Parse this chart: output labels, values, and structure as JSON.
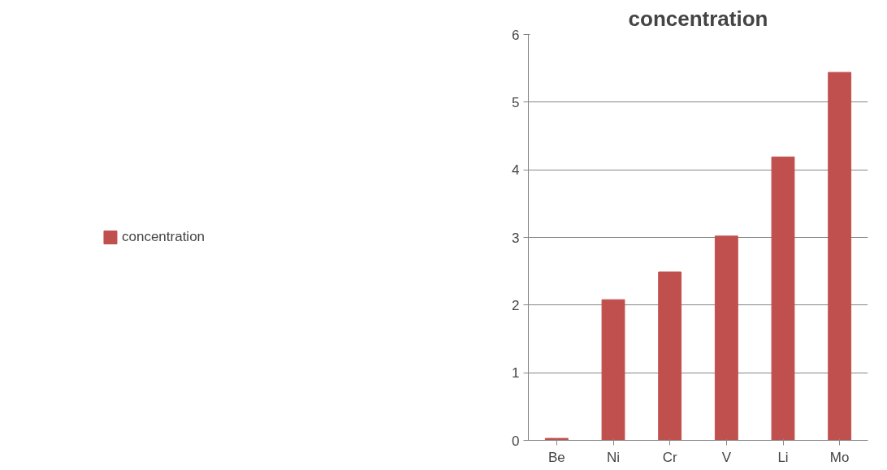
{
  "chart_data": {
    "type": "bar",
    "title": "concentration",
    "categories": [
      "Be",
      "Ni",
      "Cr",
      "V",
      "Li",
      "Mo"
    ],
    "series": [
      {
        "name": "concentration",
        "color": "#c0504d",
        "values": [
          0.03,
          2.08,
          2.49,
          3.02,
          4.19,
          5.44
        ]
      }
    ],
    "ylim": [
      0,
      6
    ],
    "yticks": [
      0,
      1,
      2,
      3,
      4,
      5,
      6
    ],
    "grid": "y",
    "legend": "left"
  }
}
